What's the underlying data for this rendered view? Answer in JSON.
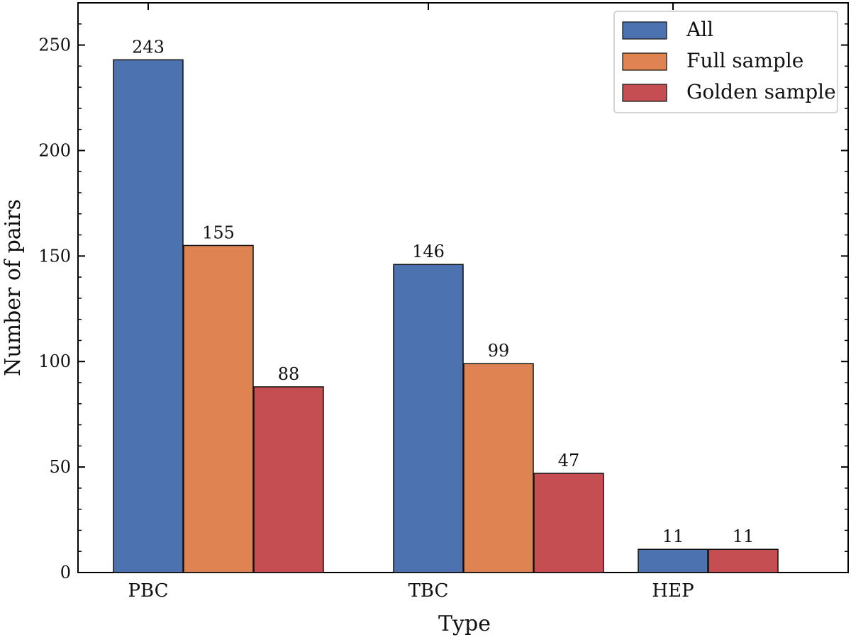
{
  "chart_data": {
    "type": "bar",
    "title": "",
    "xlabel": "Type",
    "ylabel": "Number of pairs",
    "ylim": [
      0,
      270
    ],
    "yticks": [
      0,
      50,
      100,
      150,
      200,
      250
    ],
    "ytick_labels": [
      "0",
      "50",
      "100",
      "150",
      "200",
      "250"
    ],
    "categories": [
      "PBC",
      "TBC",
      "HEP"
    ],
    "series": [
      {
        "name": "All",
        "color": "#4c72b0",
        "values": [
          243,
          146,
          11
        ]
      },
      {
        "name": "Full sample",
        "color": "#dd8452",
        "values": [
          155,
          99,
          null
        ]
      },
      {
        "name": "Golden sample",
        "color": "#c44e52",
        "values": [
          88,
          47,
          11
        ]
      }
    ],
    "data_labels": [
      [
        "243",
        "155",
        "88"
      ],
      [
        "146",
        "99",
        "47"
      ],
      [
        "11",
        null,
        "11"
      ]
    ],
    "legend_position": "top-right",
    "grid": false
  }
}
